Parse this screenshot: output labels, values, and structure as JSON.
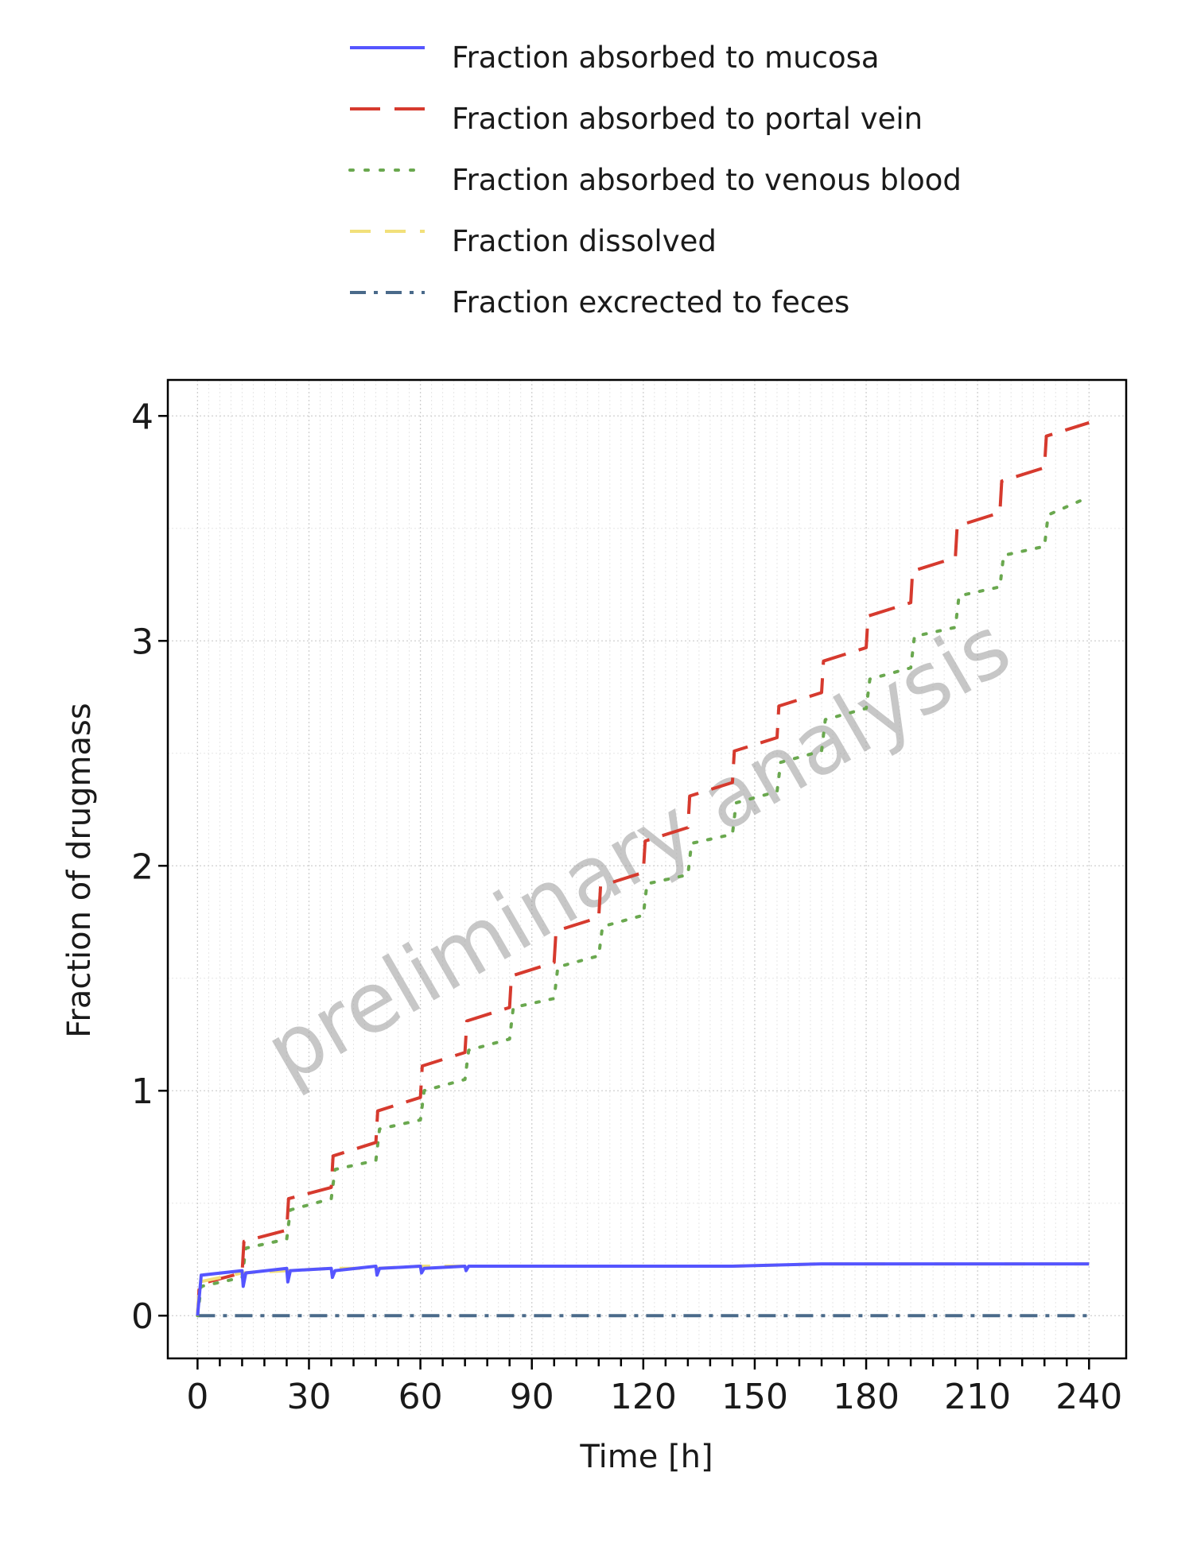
{
  "chart_data": {
    "type": "line",
    "xlabel": "Time [h]",
    "ylabel": "Fraction of drugmass",
    "xlim": [
      -8,
      250
    ],
    "ylim": [
      -0.19,
      4.16
    ],
    "x_ticks": [
      0,
      30,
      60,
      90,
      120,
      150,
      180,
      210,
      240
    ],
    "y_ticks": [
      0,
      1,
      2,
      3,
      4
    ],
    "grid": true,
    "legend_position": "top",
    "watermark": "preliminary analysis",
    "dose_interval_h": 12,
    "series": [
      {
        "name": "Fraction absorbed to mucosa",
        "color": "#5555ff",
        "style": "solid",
        "x": [
          0,
          1,
          12,
          12.3,
          13,
          24,
          24.3,
          25,
          36,
          36.3,
          37,
          48,
          48.3,
          49,
          60,
          60.3,
          61,
          72,
          72.3,
          73,
          96,
          120,
          144,
          168,
          192,
          216,
          240
        ],
        "y": [
          0,
          0.18,
          0.2,
          0.13,
          0.19,
          0.21,
          0.15,
          0.2,
          0.21,
          0.17,
          0.2,
          0.22,
          0.18,
          0.21,
          0.22,
          0.19,
          0.21,
          0.22,
          0.2,
          0.22,
          0.22,
          0.22,
          0.22,
          0.23,
          0.23,
          0.23,
          0.23
        ]
      },
      {
        "name": "Fraction absorbed to portal vein",
        "color": "#d63a2e",
        "style": "dashed",
        "x": [
          0,
          0.5,
          12,
          12.5,
          24,
          24.5,
          36,
          36.5,
          48,
          48.5,
          60,
          60.5,
          72,
          72.5,
          84,
          84.5,
          96,
          96.5,
          108,
          108.5,
          120,
          120.5,
          132,
          132.5,
          144,
          144.5,
          156,
          156.5,
          168,
          168.5,
          180,
          180.5,
          192,
          192.5,
          204,
          204.5,
          216,
          216.5,
          228,
          228.5,
          240
        ],
        "y": [
          0,
          0.14,
          0.19,
          0.33,
          0.38,
          0.52,
          0.57,
          0.71,
          0.77,
          0.91,
          0.97,
          1.11,
          1.17,
          1.31,
          1.37,
          1.51,
          1.57,
          1.71,
          1.77,
          1.91,
          1.97,
          2.11,
          2.17,
          2.31,
          2.37,
          2.51,
          2.57,
          2.71,
          2.77,
          2.91,
          2.97,
          3.11,
          3.17,
          3.31,
          3.37,
          3.51,
          3.57,
          3.71,
          3.77,
          3.91,
          3.97
        ]
      },
      {
        "name": "Fraction absorbed to venous blood",
        "color": "#6aa84f",
        "style": "dotted",
        "x": [
          0,
          1,
          12,
          13,
          24,
          25,
          36,
          37,
          48,
          49,
          60,
          61,
          72,
          73,
          84,
          85,
          96,
          97,
          108,
          109,
          120,
          121,
          132,
          133,
          144,
          145,
          156,
          157,
          168,
          169,
          180,
          181,
          192,
          193,
          204,
          205,
          216,
          217,
          228,
          229,
          240
        ],
        "y": [
          0,
          0.13,
          0.17,
          0.3,
          0.34,
          0.47,
          0.52,
          0.65,
          0.69,
          0.83,
          0.87,
          1.0,
          1.05,
          1.18,
          1.23,
          1.37,
          1.41,
          1.55,
          1.6,
          1.73,
          1.78,
          1.92,
          1.96,
          2.1,
          2.14,
          2.28,
          2.33,
          2.46,
          2.51,
          2.65,
          2.7,
          2.83,
          2.88,
          3.02,
          3.06,
          3.2,
          3.24,
          3.38,
          3.42,
          3.56,
          3.64
        ]
      },
      {
        "name": "Fraction dissolved",
        "color": "#f2e07a",
        "style": "dashed",
        "x": [
          0,
          0.5,
          12,
          24,
          36,
          48,
          60,
          72,
          96,
          120,
          144,
          168,
          192,
          216,
          240
        ],
        "y": [
          0,
          0.15,
          0.19,
          0.2,
          0.21,
          0.21,
          0.22,
          0.22,
          0.22,
          0.22,
          0.22,
          0.23,
          0.23,
          0.23,
          0.23
        ]
      },
      {
        "name": "Fraction excrected to feces",
        "color": "#4a6a8a",
        "style": "dashdot",
        "x": [
          0,
          240
        ],
        "y": [
          0,
          0
        ]
      }
    ]
  }
}
